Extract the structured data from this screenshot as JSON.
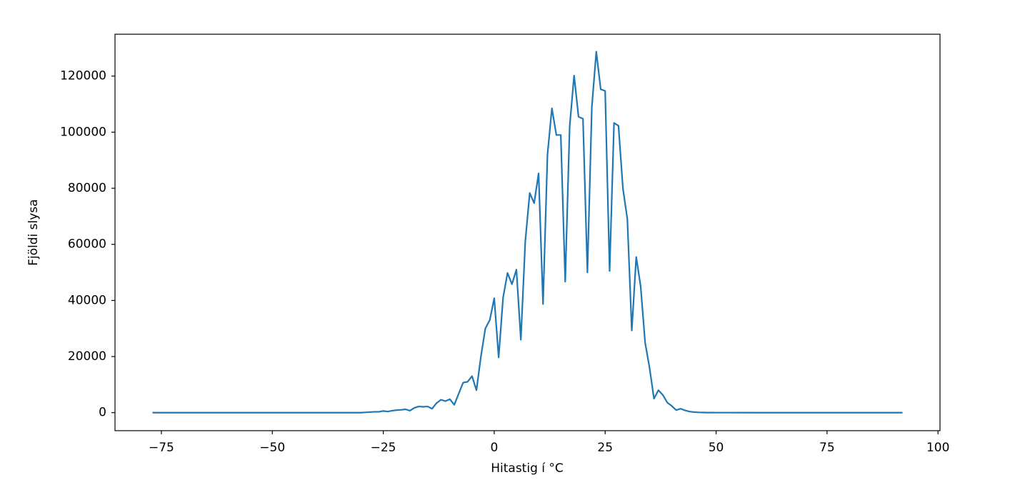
{
  "chart_data": {
    "type": "line",
    "x_label": "Hitastig í °C",
    "y_label": "Fjöldi slysa",
    "x": [
      -77,
      -60,
      -45,
      -30,
      -29,
      -28,
      -27,
      -26,
      -25,
      -24,
      -23,
      -22,
      -21,
      -20,
      -19,
      -18,
      -17,
      -16,
      -15,
      -14,
      -13,
      -12,
      -11,
      -10,
      -9,
      -8,
      -7,
      -6,
      -5,
      -4,
      -3,
      -2,
      -1,
      0,
      1,
      2,
      3,
      4,
      5,
      6,
      7,
      8,
      9,
      10,
      11,
      12,
      13,
      14,
      15,
      16,
      17,
      18,
      19,
      20,
      21,
      22,
      23,
      24,
      25,
      26,
      27,
      28,
      29,
      30,
      31,
      32,
      33,
      34,
      35,
      36,
      37,
      38,
      39,
      40,
      41,
      42,
      43,
      44,
      45,
      46,
      47,
      48,
      49,
      50,
      60,
      75,
      92
    ],
    "series": [
      {
        "color": "#1f77b4",
        "values": [
          0,
          0,
          0,
          0,
          100,
          200,
          300,
          300,
          600,
          400,
          700,
          900,
          1000,
          1200,
          700,
          1700,
          2200,
          2100,
          2200,
          1400,
          3400,
          4600,
          4100,
          4800,
          2800,
          6800,
          10700,
          11000,
          13000,
          8000,
          20000,
          30000,
          33000,
          40800,
          19700,
          41000,
          49800,
          45800,
          51000,
          26000,
          61000,
          78300,
          74700,
          85300,
          38700,
          92000,
          108500,
          99000,
          99000,
          46700,
          102000,
          120200,
          105500,
          104800,
          50000,
          109000,
          128700,
          115300,
          114700,
          50500,
          103300,
          102300,
          80000,
          69000,
          29300,
          55500,
          45000,
          25000,
          16000,
          5000,
          8000,
          6300,
          3600,
          2400,
          900,
          1400,
          800,
          400,
          200,
          100,
          50,
          30,
          20,
          10,
          0,
          0,
          0
        ]
      }
    ],
    "xlim": [
      -85.45,
      100.45
    ],
    "ylim": [
      -6425,
      134925
    ],
    "xticks": [
      {
        "value": -75,
        "label": "−75"
      },
      {
        "value": -50,
        "label": "−50"
      },
      {
        "value": -25,
        "label": "−25"
      },
      0,
      25,
      50,
      75,
      100
    ],
    "yticks": [
      0,
      20000,
      40000,
      60000,
      80000,
      100000,
      120000
    ]
  }
}
